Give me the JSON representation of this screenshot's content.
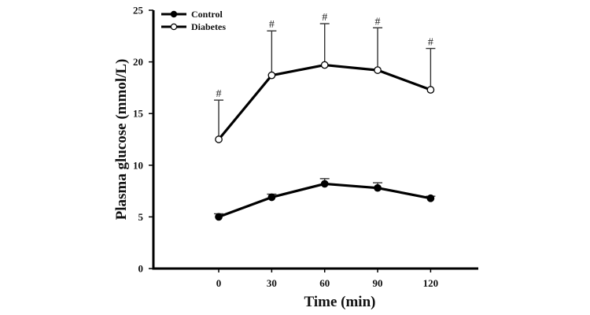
{
  "chart_data": {
    "type": "line",
    "title": "",
    "xlabel": "Time (min)",
    "ylabel": "Plasma glucose (mmol/L)",
    "x": [
      0,
      30,
      60,
      90,
      120
    ],
    "xticks": [
      "0",
      "30",
      "60",
      "90",
      "120"
    ],
    "xlim": [
      -37,
      147
    ],
    "yticks": [
      "0",
      "5",
      "10",
      "15",
      "20",
      "25"
    ],
    "ylim": [
      0,
      25
    ],
    "grid": false,
    "legend_position": "top-left",
    "series": [
      {
        "name": "Control",
        "marker": "filled-circle",
        "color": "#000000",
        "values": [
          5.0,
          6.9,
          8.2,
          7.8,
          6.8
        ],
        "error_upper": [
          5.3,
          7.2,
          8.7,
          8.3,
          7.0
        ],
        "annotations": [
          "",
          "",
          "",
          "",
          ""
        ]
      },
      {
        "name": "Diabetes",
        "marker": "open-circle",
        "color": "#000000",
        "values": [
          12.5,
          18.7,
          19.7,
          19.2,
          17.3
        ],
        "error_upper": [
          16.3,
          23.0,
          23.7,
          23.3,
          21.3
        ],
        "annotations": [
          "#",
          "#",
          "#",
          "#",
          "#"
        ]
      }
    ]
  }
}
